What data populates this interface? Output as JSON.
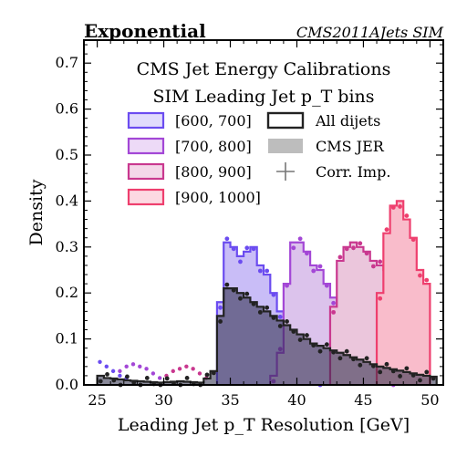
{
  "header": {
    "left": "Exponential",
    "right": "CMS2011AJets SIM"
  },
  "chart_data": {
    "type": "histogram",
    "title_lines": [
      "CMS Jet Energy Calibrations",
      "SIM Leading Jet p_T bins"
    ],
    "xlabel": "Leading Jet p_T Resolution [GeV]",
    "ylabel": "Density",
    "xlim": [
      24,
      51
    ],
    "ylim": [
      0,
      0.75
    ],
    "xticks": [
      25,
      30,
      35,
      40,
      45,
      50
    ],
    "yticks": [
      0.0,
      0.1,
      0.2,
      0.3,
      0.4,
      0.5,
      0.6,
      0.7
    ],
    "bin_width": 0.5,
    "legend": [
      {
        "label": "[600, 700]",
        "kind": "box",
        "color": "#6b4cf0"
      },
      {
        "label": "[700, 800]",
        "kind": "box",
        "color": "#a347d6"
      },
      {
        "label": "[800, 900]",
        "kind": "box",
        "color": "#c9388f"
      },
      {
        "label": "[900, 1000]",
        "kind": "box",
        "color": "#ee3f6e"
      },
      {
        "label": "All dijets",
        "kind": "line",
        "color": "#222222"
      },
      {
        "label": "CMS JER",
        "kind": "band",
        "color": "#bdbdbd"
      },
      {
        "label": "Corr. Imp.",
        "kind": "cross",
        "color": "#777777"
      }
    ],
    "series": [
      {
        "name": "[600, 700]",
        "color": "#6b4cf0",
        "fill": "#c9bdf7",
        "x_start": 34.0,
        "values": [
          0.18,
          0.31,
          0.3,
          0.28,
          0.29,
          0.3,
          0.26,
          0.24,
          0.2,
          0.16,
          0.13,
          0.1,
          0.06,
          0.04,
          0.02,
          0.01
        ],
        "points": [
          [
            25.2,
            0.05
          ],
          [
            25.7,
            0.04
          ],
          [
            26.2,
            0.03
          ],
          [
            26.7,
            0.02
          ],
          [
            27.2,
            0.015
          ]
        ]
      },
      {
        "name": "[700, 800]",
        "color": "#a347d6",
        "fill": "#dcc3ec",
        "x_start": 38.0,
        "values": [
          0.02,
          0.07,
          0.22,
          0.31,
          0.31,
          0.29,
          0.26,
          0.25,
          0.22,
          0.19,
          0.16,
          0.13,
          0.1,
          0.06,
          0.05,
          0.04,
          0.03,
          0.02,
          0.01
        ],
        "points": [
          [
            26.7,
            0.03
          ],
          [
            27.2,
            0.04
          ],
          [
            27.7,
            0.045
          ],
          [
            28.2,
            0.04
          ],
          [
            28.7,
            0.035
          ],
          [
            29.2,
            0.025
          ],
          [
            29.7,
            0.015
          ]
        ]
      },
      {
        "name": "[800, 900]",
        "color": "#c9388f",
        "fill": "#ebc6dc",
        "x_start": 42.5,
        "values": [
          0.17,
          0.27,
          0.3,
          0.31,
          0.3,
          0.29,
          0.27,
          0.26,
          0.25,
          0.23,
          0.21,
          0.17,
          0.15,
          0.14,
          0.1
        ],
        "points": [
          [
            30.2,
            0.02
          ],
          [
            30.7,
            0.03
          ],
          [
            31.2,
            0.035
          ],
          [
            31.7,
            0.04
          ],
          [
            32.2,
            0.035
          ],
          [
            32.7,
            0.025
          ],
          [
            33.2,
            0.015
          ]
        ]
      },
      {
        "name": "[900, 1000]",
        "color": "#ee3f6e",
        "fill": "#f9bccb",
        "x_start": 46.0,
        "values": [
          0.2,
          0.33,
          0.39,
          0.4,
          0.36,
          0.32,
          0.25,
          0.22
        ]
      }
    ],
    "all_dijets": {
      "name": "All dijets",
      "color": "#222222",
      "fill": "rgba(40,40,70,0.55)",
      "x_start": 25.0,
      "values": [
        0.02,
        0.015,
        0.014,
        0.012,
        0.01,
        0.009,
        0.008,
        0.007,
        0.006,
        0.005,
        0.006,
        0.007,
        0.008,
        0.007,
        0.006,
        0.005,
        0.014,
        0.03,
        0.15,
        0.21,
        0.21,
        0.2,
        0.19,
        0.18,
        0.17,
        0.16,
        0.15,
        0.14,
        0.13,
        0.12,
        0.11,
        0.1,
        0.09,
        0.085,
        0.08,
        0.075,
        0.07,
        0.065,
        0.06,
        0.055,
        0.05,
        0.045,
        0.04,
        0.037,
        0.034,
        0.031,
        0.028,
        0.025,
        0.022,
        0.02,
        0.018
      ]
    }
  }
}
